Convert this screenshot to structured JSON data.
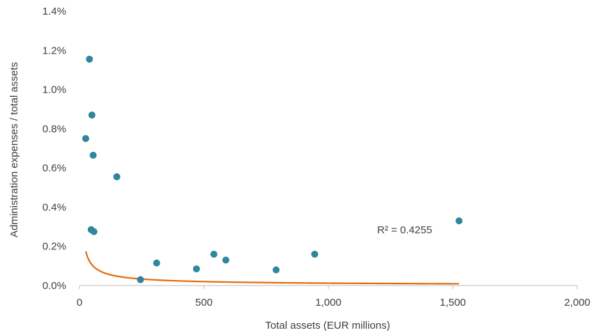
{
  "chart_data": {
    "type": "scatter",
    "title": "",
    "xlabel": "Total assets (EUR  millions)",
    "ylabel": "Administration expenses / total assets",
    "xlim": [
      0,
      2000
    ],
    "ylim": [
      0,
      0.014
    ],
    "x_ticks": [
      0,
      500,
      1000,
      1500,
      2000
    ],
    "x_tick_labels": [
      "0",
      "500",
      "1,000",
      "1,500",
      "2,000"
    ],
    "y_ticks": [
      0,
      0.002,
      0.004,
      0.006,
      0.008,
      0.01,
      0.012,
      0.014
    ],
    "y_tick_labels": [
      "0.0%",
      "0.2%",
      "0.4%",
      "0.6%",
      "0.8%",
      "1.0%",
      "1.2%",
      "1.4%"
    ],
    "grid": false,
    "point_color": "#31859c",
    "trend_color": "#e36c0a",
    "points": [
      {
        "x": 25,
        "y": 0.0075
      },
      {
        "x": 40,
        "y": 0.01155
      },
      {
        "x": 47,
        "y": 0.00285
      },
      {
        "x": 50,
        "y": 0.0087
      },
      {
        "x": 55,
        "y": 0.00665
      },
      {
        "x": 58,
        "y": 0.00275
      },
      {
        "x": 150,
        "y": 0.00555
      },
      {
        "x": 245,
        "y": 0.0003
      },
      {
        "x": 310,
        "y": 0.00115
      },
      {
        "x": 470,
        "y": 0.00085
      },
      {
        "x": 540,
        "y": 0.0016
      },
      {
        "x": 588,
        "y": 0.0013
      },
      {
        "x": 790,
        "y": 0.0008
      },
      {
        "x": 945,
        "y": 0.0016
      },
      {
        "x": 1525,
        "y": 0.0033
      }
    ],
    "trendline": {
      "type": "power",
      "coef": 0.0177,
      "exponent": -0.72,
      "x_range": [
        25,
        1525
      ],
      "r2_label": "R² = 0.4255"
    }
  }
}
